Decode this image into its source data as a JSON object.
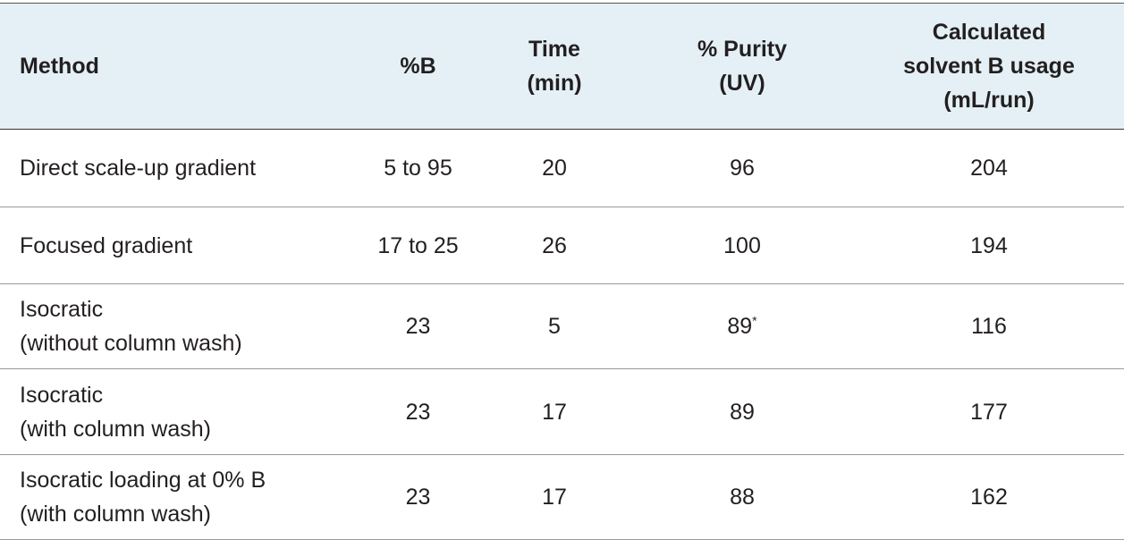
{
  "table": {
    "header": [
      "Method",
      "%B",
      [
        "Time",
        "(min)"
      ],
      [
        "% Purity",
        "(UV)"
      ],
      [
        "Calculated",
        "solvent B usage",
        "(mL/run)"
      ]
    ],
    "rows": [
      [
        "Direct scale-up gradient",
        "5 to 95",
        20,
        96,
        204
      ],
      [
        "Focused gradient",
        "17 to 25",
        26,
        100,
        194
      ],
      [
        [
          "Isocratic",
          "(without column wash)"
        ],
        23,
        5,
        {
          "value": 89,
          "sup": "*"
        },
        116
      ],
      [
        [
          "Isocratic",
          "(with column wash)"
        ],
        23,
        17,
        89,
        177
      ],
      [
        [
          "Isocratic loading at 0% B",
          "(with column wash)"
        ],
        23,
        17,
        88,
        162
      ]
    ]
  }
}
